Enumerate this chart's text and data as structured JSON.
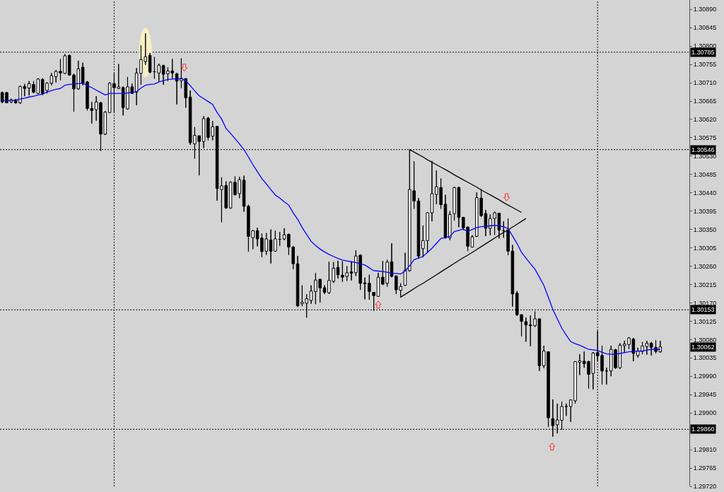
{
  "chart_data": {
    "type": "candlestick",
    "categories": [
      null,
      null,
      null,
      null,
      null,
      null,
      null,
      null,
      null,
      null,
      null,
      null,
      null,
      null,
      null,
      null,
      null,
      null,
      null,
      null,
      null,
      null,
      null,
      null,
      null,
      null,
      null,
      null,
      null,
      null,
      null,
      null,
      null,
      null,
      null,
      null,
      null,
      null,
      null,
      null,
      null,
      null,
      null,
      null,
      null,
      null,
      null,
      null,
      null,
      null,
      null,
      null,
      null,
      null,
      null,
      null,
      null,
      null,
      null,
      null,
      null,
      null,
      null,
      null,
      null,
      null,
      null,
      null,
      null,
      null,
      null,
      null,
      null,
      null,
      null,
      null,
      null,
      null,
      null,
      null,
      null,
      null,
      null,
      null,
      null,
      null,
      null,
      null,
      null,
      null,
      null,
      null,
      null,
      null,
      null,
      null,
      null,
      null,
      null,
      null,
      null,
      null,
      null,
      null,
      null,
      null,
      null,
      null,
      null,
      null,
      null,
      null,
      null,
      null,
      null,
      null,
      null,
      null,
      null,
      null,
      null,
      null,
      null,
      null,
      null,
      null,
      null,
      null,
      null,
      null,
      null,
      null,
      null,
      null,
      null,
      null,
      null,
      null,
      null,
      null,
      null,
      null,
      null,
      null,
      null,
      null,
      null,
      null,
      null,
      null,
      null,
      null,
      null,
      null
    ],
    "ohlc": [
      [
        1.30686,
        1.30688,
        1.3066,
        1.30663
      ],
      [
        1.30686,
        1.30687,
        1.3066,
        1.30661
      ],
      [
        1.30663,
        1.30671,
        1.3066,
        1.30668
      ],
      [
        1.30668,
        1.3067,
        1.30659,
        1.30661
      ],
      [
        1.30661,
        1.30703,
        1.30658,
        1.30701
      ],
      [
        1.30701,
        1.30707,
        1.30677,
        1.30696
      ],
      [
        1.30697,
        1.30714,
        1.30679,
        1.30708
      ],
      [
        1.30706,
        1.30714,
        1.30684,
        1.30687
      ],
      [
        1.30684,
        1.30721,
        1.30683,
        1.30719
      ],
      [
        1.30718,
        1.30721,
        1.3068,
        1.30684
      ],
      [
        1.30691,
        1.30711,
        1.30684,
        1.30709
      ],
      [
        1.30709,
        1.30734,
        1.30704,
        1.30727
      ],
      [
        1.30725,
        1.30741,
        1.30711,
        1.30738
      ],
      [
        1.30738,
        1.30768,
        1.30716,
        1.30734
      ],
      [
        1.30733,
        1.3078,
        1.30732,
        1.30776
      ],
      [
        1.30777,
        1.30779,
        1.30728,
        1.30729
      ],
      [
        1.30729,
        1.30732,
        1.30639,
        1.30695
      ],
      [
        1.30695,
        1.30764,
        1.30693,
        1.30744
      ],
      [
        1.30748,
        1.30759,
        1.30704,
        1.30709
      ],
      [
        1.30712,
        1.30714,
        1.30642,
        1.30647
      ],
      [
        1.30647,
        1.30663,
        1.3061,
        1.30642
      ],
      [
        1.30644,
        1.30677,
        1.30617,
        1.30663
      ],
      [
        1.30661,
        1.30663,
        1.30543,
        1.30584
      ],
      [
        1.30584,
        1.3064,
        1.30582,
        1.30638
      ],
      [
        1.30637,
        1.30711,
        1.30636,
        1.30709
      ],
      [
        1.30708,
        1.30734,
        1.30637,
        1.30698
      ],
      [
        1.30696,
        1.30756,
        1.30695,
        1.307
      ],
      [
        1.30698,
        1.30701,
        1.3063,
        1.30649
      ],
      [
        1.30646,
        1.30724,
        1.30644,
        1.307
      ],
      [
        1.307,
        1.30708,
        1.30683,
        1.30684
      ],
      [
        1.30687,
        1.30746,
        1.30655,
        1.30734
      ],
      [
        1.30733,
        1.30802,
        1.30705,
        1.30767
      ],
      [
        1.30762,
        1.30831,
        1.30754,
        1.30774
      ],
      [
        1.30777,
        1.30783,
        1.30734,
        1.30736
      ],
      [
        1.30737,
        1.30773,
        1.3072,
        1.30737
      ],
      [
        1.30734,
        1.30757,
        1.30714,
        1.30753
      ],
      [
        1.30752,
        1.30754,
        1.30705,
        1.30731
      ],
      [
        1.30732,
        1.30748,
        1.30714,
        1.30739
      ],
      [
        1.30739,
        1.30768,
        1.3072,
        1.30734
      ],
      [
        1.30732,
        1.30734,
        1.30657,
        1.30714
      ],
      [
        1.30715,
        1.3077,
        1.30697,
        1.30721
      ],
      [
        1.3072,
        1.30721,
        1.30649,
        1.30673
      ],
      [
        1.30675,
        1.30691,
        1.30558,
        1.30563
      ],
      [
        1.3056,
        1.30601,
        1.30524,
        1.30581
      ],
      [
        1.3058,
        1.3058,
        1.30483,
        1.30566
      ],
      [
        1.30566,
        1.30628,
        1.3055,
        1.30622
      ],
      [
        1.30623,
        1.30626,
        1.30569,
        1.30576
      ],
      [
        1.30579,
        1.30616,
        1.30569,
        1.30602
      ],
      [
        1.30603,
        1.30604,
        1.30421,
        1.30451
      ],
      [
        1.30448,
        1.30478,
        1.30368,
        1.30457
      ],
      [
        1.30458,
        1.30468,
        1.30401,
        1.30403
      ],
      [
        1.30403,
        1.30468,
        1.30401,
        1.30466
      ],
      [
        1.30466,
        1.3048,
        1.30434,
        1.30435
      ],
      [
        1.30438,
        1.30479,
        1.30427,
        1.30472
      ],
      [
        1.30471,
        1.30482,
        1.30394,
        1.30407
      ],
      [
        1.30407,
        1.30411,
        1.30296,
        1.30333
      ],
      [
        1.3033,
        1.30349,
        1.30302,
        1.30347
      ],
      [
        1.30347,
        1.30354,
        1.30309,
        1.30327
      ],
      [
        1.30329,
        1.3034,
        1.30282,
        1.30296
      ],
      [
        1.30297,
        1.30341,
        1.30288,
        1.30327
      ],
      [
        1.30324,
        1.3035,
        1.30267,
        1.30297
      ],
      [
        1.30297,
        1.30347,
        1.30296,
        1.30327
      ],
      [
        1.30326,
        1.30344,
        1.3031,
        1.30326
      ],
      [
        1.30327,
        1.30353,
        1.30324,
        1.30337
      ],
      [
        1.30338,
        1.3034,
        1.30288,
        1.30307
      ],
      [
        1.30307,
        1.30309,
        1.30253,
        1.30266
      ],
      [
        1.30266,
        1.30285,
        1.3016,
        1.30163
      ],
      [
        1.30168,
        1.30213,
        1.30162,
        1.30172
      ],
      [
        1.30169,
        1.30191,
        1.30134,
        1.3018
      ],
      [
        1.30176,
        1.30213,
        1.30168,
        1.30199
      ],
      [
        1.30198,
        1.30243,
        1.30167,
        1.30226
      ],
      [
        1.30228,
        1.30228,
        1.30171,
        1.30207
      ],
      [
        1.30207,
        1.30213,
        1.30192,
        1.30196
      ],
      [
        1.30195,
        1.30271,
        1.30192,
        1.30225
      ],
      [
        1.30223,
        1.3027,
        1.30219,
        1.30255
      ],
      [
        1.30257,
        1.30273,
        1.3023,
        1.30239
      ],
      [
        1.30238,
        1.30272,
        1.30222,
        1.30233
      ],
      [
        1.30235,
        1.3026,
        1.30224,
        1.30244
      ],
      [
        1.30246,
        1.3027,
        1.30225,
        1.30243
      ],
      [
        1.30244,
        1.30299,
        1.30236,
        1.30285
      ],
      [
        1.30287,
        1.30289,
        1.30202,
        1.30218
      ],
      [
        1.30219,
        1.30232,
        1.30179,
        1.30217
      ],
      [
        1.30218,
        1.30239,
        1.30178,
        1.30198
      ],
      [
        1.30196,
        1.30196,
        1.30151,
        1.30188
      ],
      [
        1.30186,
        1.30244,
        1.30185,
        1.30233
      ],
      [
        1.30233,
        1.30273,
        1.30214,
        1.30216
      ],
      [
        1.30218,
        1.30276,
        1.3021,
        1.3027
      ],
      [
        1.30271,
        1.30316,
        1.30233,
        1.30235
      ],
      [
        1.30236,
        1.30237,
        1.30192,
        1.30202
      ],
      [
        1.30201,
        1.30218,
        1.30184,
        1.3021
      ],
      [
        1.30213,
        1.30293,
        1.30212,
        1.3025
      ],
      [
        1.30249,
        1.30546,
        1.30247,
        1.30448
      ],
      [
        1.30445,
        1.30517,
        1.30401,
        1.3042
      ],
      [
        1.3042,
        1.30427,
        1.30279,
        1.30285
      ],
      [
        1.30303,
        1.3036,
        1.30282,
        1.30323
      ],
      [
        1.30323,
        1.30392,
        1.30293,
        1.30391
      ],
      [
        1.30391,
        1.30518,
        1.3037,
        1.30438
      ],
      [
        1.30436,
        1.30495,
        1.30412,
        1.30455
      ],
      [
        1.30453,
        1.30475,
        1.30401,
        1.30411
      ],
      [
        1.30412,
        1.30435,
        1.30328,
        1.3033
      ],
      [
        1.3033,
        1.30395,
        1.30324,
        1.30387
      ],
      [
        1.30389,
        1.30455,
        1.30372,
        1.30453
      ],
      [
        1.30453,
        1.30455,
        1.30356,
        1.3038
      ],
      [
        1.3038,
        1.3038,
        1.30349,
        1.30354
      ],
      [
        1.30356,
        1.30357,
        1.30297,
        1.30309
      ],
      [
        1.30307,
        1.30336,
        1.30306,
        1.30332
      ],
      [
        1.30333,
        1.30441,
        1.30332,
        1.30428
      ],
      [
        1.30427,
        1.30449,
        1.30381,
        1.30384
      ],
      [
        1.30389,
        1.30398,
        1.30334,
        1.30353
      ],
      [
        1.30353,
        1.30387,
        1.30336,
        1.30377
      ],
      [
        1.30377,
        1.30394,
        1.30337,
        1.30391
      ],
      [
        1.3039,
        1.3039,
        1.30328,
        1.30349
      ],
      [
        1.30347,
        1.3037,
        1.3033,
        1.30347
      ],
      [
        1.30349,
        1.30377,
        1.30287,
        1.30297
      ],
      [
        1.30297,
        1.30312,
        1.30161,
        1.30192
      ],
      [
        1.30194,
        1.30199,
        1.30138,
        1.30141
      ],
      [
        1.30141,
        1.30142,
        1.30088,
        1.30125
      ],
      [
        1.30124,
        1.30134,
        1.30075,
        1.30116
      ],
      [
        1.30116,
        1.30139,
        1.30064,
        1.30114
      ],
      [
        1.30114,
        1.30149,
        1.30111,
        1.30131
      ],
      [
        1.30131,
        1.30131,
        1.30003,
        1.30016
      ],
      [
        1.30016,
        1.30065,
        1.3001,
        1.30052
      ],
      [
        1.3005,
        1.30051,
        1.29866,
        1.29888
      ],
      [
        1.29886,
        1.29933,
        1.29842,
        1.29869
      ],
      [
        1.29871,
        1.29923,
        1.2985,
        1.29883
      ],
      [
        1.29882,
        1.29928,
        1.29859,
        1.29916
      ],
      [
        1.29916,
        1.29923,
        1.29893,
        1.29916
      ],
      [
        1.29916,
        1.29933,
        1.29878,
        1.29932
      ],
      [
        1.2993,
        1.30027,
        1.29923,
        1.30026
      ],
      [
        1.30024,
        1.30044,
        1.29993,
        1.30028
      ],
      [
        1.30027,
        1.30051,
        1.30011,
        1.30021
      ],
      [
        1.30026,
        1.30028,
        1.2996,
        1.29995
      ],
      [
        1.29997,
        1.30049,
        1.29958,
        1.30047
      ],
      [
        1.30048,
        1.30101,
        1.30028,
        1.3004
      ],
      [
        1.30041,
        1.30065,
        1.2997,
        1.30003
      ],
      [
        1.30003,
        1.30011,
        1.2997,
        1.30003
      ],
      [
        1.30003,
        1.30065,
        1.2999,
        1.30056
      ],
      [
        1.30055,
        1.30057,
        1.30008,
        1.30011
      ],
      [
        1.30011,
        1.30071,
        1.30008,
        1.30066
      ],
      [
        1.30065,
        1.30077,
        1.30048,
        1.30069
      ],
      [
        1.30068,
        1.30086,
        1.30057,
        1.30084
      ],
      [
        1.30081,
        1.30084,
        1.30027,
        1.30046
      ],
      [
        1.30041,
        1.3006,
        1.30036,
        1.30052
      ],
      [
        1.30051,
        1.30074,
        1.30044,
        1.30064
      ],
      [
        1.30063,
        1.30077,
        1.30043,
        1.30071
      ],
      [
        1.30071,
        1.30074,
        1.30041,
        1.30061
      ],
      [
        1.30061,
        1.30078,
        1.30046,
        1.30051
      ],
      [
        1.3005,
        1.30077,
        1.30048,
        1.30062
      ],
      null,
      null,
      null,
      null,
      null,
      null
    ],
    "series": [
      {
        "type": "line",
        "color": "#0000ff",
        "values": [
          1.30666,
          1.30666,
          1.30667,
          1.30667,
          1.3067,
          1.30672,
          1.30675,
          1.30677,
          1.3068,
          1.30682,
          1.30687,
          1.30691,
          1.30694,
          1.30696,
          1.30704,
          1.30706,
          1.30707,
          1.30708,
          1.30709,
          1.30703,
          1.30698,
          1.30692,
          1.30686,
          1.3068,
          1.30684,
          1.30684,
          1.30684,
          1.30684,
          1.30685,
          1.30686,
          1.30688,
          1.30697,
          1.30704,
          1.30706,
          1.30707,
          1.30712,
          1.30715,
          1.30718,
          1.30719,
          1.3072,
          1.3072,
          1.30715,
          1.30703,
          1.3069,
          1.30678,
          1.30671,
          1.30664,
          1.30657,
          1.30637,
          1.30621,
          1.30598,
          1.30586,
          1.30573,
          1.3056,
          1.30546,
          1.30528,
          1.30509,
          1.30492,
          1.30475,
          1.30462,
          1.30448,
          1.30435,
          1.30427,
          1.30418,
          1.3041,
          1.30391,
          1.30375,
          1.30355,
          1.30338,
          1.30321,
          1.30311,
          1.30302,
          1.30295,
          1.30289,
          1.30284,
          1.30279,
          1.30275,
          1.30273,
          1.30271,
          1.30269,
          1.30266,
          1.30263,
          1.30256,
          1.30249,
          1.30248,
          1.30247,
          1.30245,
          1.30242,
          1.30242,
          1.30241,
          1.30248,
          1.30261,
          1.30276,
          1.3028,
          1.30284,
          1.30294,
          1.30304,
          1.30316,
          1.30328,
          1.3033,
          1.30333,
          1.30345,
          1.30348,
          1.30351,
          1.30345,
          1.3035,
          1.30355,
          1.30357,
          1.30358,
          1.30359,
          1.3036,
          1.30359,
          1.30357,
          1.30352,
          1.30334,
          1.30316,
          1.30294,
          1.3028,
          1.30266,
          1.30253,
          1.30233,
          1.30213,
          1.30184,
          1.30154,
          1.30131,
          1.30108,
          1.30091,
          1.30075,
          1.3007,
          1.30066,
          1.30061,
          1.30056,
          1.30055,
          1.30053,
          1.30049,
          1.30045,
          1.30044,
          1.30044,
          1.30046,
          1.30048,
          1.3005,
          1.30051,
          1.30052,
          1.30052,
          1.30054,
          1.30056,
          1.30056,
          1.30056,
          null,
          null,
          null,
          null,
          null,
          null
        ]
      },
      {
        "type": "line",
        "color": "#000000",
        "values": [
          null,
          null,
          null,
          null,
          null,
          null,
          null,
          null,
          null,
          null,
          null,
          null,
          null,
          null,
          null,
          null,
          null,
          null,
          null,
          null,
          null,
          null,
          null,
          null,
          null,
          null,
          null,
          null,
          null,
          null,
          null,
          null,
          null,
          null,
          null,
          null,
          null,
          null,
          null,
          null,
          null,
          null,
          null,
          null,
          null,
          null,
          null,
          null,
          null,
          null,
          null,
          null,
          null,
          null,
          null,
          null,
          null,
          null,
          null,
          null,
          null,
          null,
          null,
          null,
          null,
          null,
          null,
          null,
          null,
          null,
          null,
          null,
          null,
          null,
          null,
          null,
          null,
          null,
          null,
          null,
          null,
          null,
          null,
          null,
          null,
          null,
          null,
          null,
          null,
          null,
          null,
          1.30546,
          1.3054,
          1.30534,
          1.30528,
          1.30521,
          1.30515,
          1.30509,
          1.30503,
          1.30497,
          1.30491,
          1.30484,
          1.30478,
          1.30472,
          1.30466,
          1.3046,
          1.30454,
          1.30447,
          1.30441,
          1.30435,
          1.30429,
          1.30423,
          1.30416,
          1.3041,
          1.30404,
          1.30398,
          1.30392,
          null,
          null,
          null,
          null,
          null,
          null,
          null,
          null,
          null,
          null,
          null,
          null,
          null,
          null,
          null,
          null,
          null,
          null,
          null,
          null,
          null,
          null,
          null,
          null,
          null,
          null,
          null,
          null,
          null,
          null,
          null,
          null,
          null,
          null,
          null,
          null,
          null
        ]
      },
      {
        "type": "line",
        "color": "#000000",
        "values": [
          null,
          null,
          null,
          null,
          null,
          null,
          null,
          null,
          null,
          null,
          null,
          null,
          null,
          null,
          null,
          null,
          null,
          null,
          null,
          null,
          null,
          null,
          null,
          null,
          null,
          null,
          null,
          null,
          null,
          null,
          null,
          null,
          null,
          null,
          null,
          null,
          null,
          null,
          null,
          null,
          null,
          null,
          null,
          null,
          null,
          null,
          null,
          null,
          null,
          null,
          null,
          null,
          null,
          null,
          null,
          null,
          null,
          null,
          null,
          null,
          null,
          null,
          null,
          null,
          null,
          null,
          null,
          null,
          null,
          null,
          null,
          null,
          null,
          null,
          null,
          null,
          null,
          null,
          null,
          null,
          null,
          null,
          null,
          null,
          null,
          null,
          null,
          null,
          null,
          1.30184,
          1.30191,
          1.30198,
          1.30205,
          1.30212,
          1.30218,
          1.30225,
          1.30232,
          1.30239,
          1.30246,
          1.30253,
          1.3026,
          1.30267,
          1.30274,
          1.30281,
          1.30287,
          1.30294,
          1.30301,
          1.30308,
          1.30315,
          1.30322,
          1.30329,
          1.30336,
          1.30343,
          1.30349,
          1.30356,
          1.30363,
          1.3037,
          1.30377,
          null,
          null,
          null,
          null,
          null,
          null,
          null,
          null,
          null,
          null,
          null,
          null,
          null,
          null,
          null,
          null,
          null,
          null,
          null,
          null,
          null,
          null,
          null,
          null,
          null,
          null,
          null,
          null,
          null,
          null,
          null,
          null,
          null,
          null,
          null,
          null
        ]
      }
    ],
    "ylim": [
      1.2972,
      1.30913
    ],
    "yticks": [
      {
        "value": 1.2972,
        "label": "1.29720"
      },
      1.29765,
      {
        "value": 1.2981,
        "label": "1.29810"
      },
      {
        "value": 1.299,
        "label": "1.29900"
      },
      1.29945,
      {
        "value": 1.2999,
        "label": "1.29990"
      },
      1.30035,
      {
        "value": 1.3008,
        "label": "1.30080"
      },
      1.30125,
      {
        "value": 1.3017,
        "label": "1.30170"
      },
      1.30215,
      {
        "value": 1.3026,
        "label": "1.30260"
      },
      1.30305,
      {
        "value": 1.3035,
        "label": "1.30350"
      },
      1.30395,
      {
        "value": 1.3044,
        "label": "1.30440"
      },
      1.30485,
      {
        "value": 1.3053,
        "label": "1.30530"
      },
      1.30575,
      {
        "value": 1.3062,
        "label": "1.30620"
      },
      1.30665,
      {
        "value": 1.3071,
        "label": "1.30710"
      },
      1.30755,
      {
        "value": 1.308,
        "label": "1.30800"
      },
      1.30845,
      {
        "value": 1.3089,
        "label": "1.30890"
      }
    ],
    "ref_lines": [
      {
        "axis": "y",
        "value": 1.30785,
        "label": "1.30785",
        "color": "#000000",
        "line_style": "dashed"
      },
      {
        "axis": "y",
        "value": 1.30546,
        "label": "1.30546",
        "color": "#000000",
        "line_style": "dashed"
      },
      {
        "axis": "y",
        "value": 1.30153,
        "label": "1.30153",
        "color": "#000000",
        "line_style": "dashed"
      },
      {
        "axis": "y",
        "value": 1.2986,
        "label": "1.29860",
        "color": "#000000",
        "line_style": "dashed"
      }
    ],
    "annotations": [
      {
        "text": "1.30062",
        "y": 1.30062
      }
    ],
    "tick_labels": "y"
  }
}
